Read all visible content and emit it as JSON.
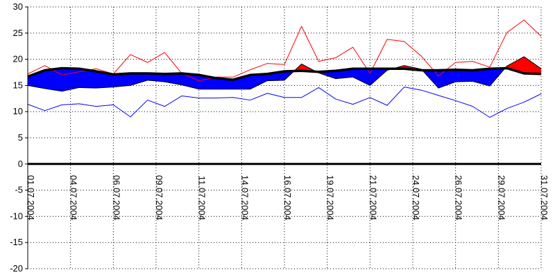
{
  "chart_data": {
    "type": "area",
    "title": "",
    "xlabel": "",
    "ylabel": "",
    "ylim": [
      -20,
      30
    ],
    "y_ticks": [
      30,
      25,
      20,
      15,
      10,
      5,
      0,
      -5,
      -10,
      -15,
      -20
    ],
    "x_tick_labels": [
      "01.07.2004",
      "04.07.2004",
      "06.07.2004",
      "09.07.2004",
      "11.07.2004",
      "14.07.2004",
      "16.07.2004",
      "19.07.2004",
      "21.07.2004",
      "24.07.2004",
      "26.07.2004",
      "29.07.2004",
      "31.07.2004"
    ],
    "x_tick_days": [
      1,
      3.5,
      6,
      8.5,
      11,
      13.5,
      16,
      18.5,
      21,
      23.5,
      26,
      28.5,
      31
    ],
    "grid": true,
    "zero_line": true,
    "days": [
      1,
      2,
      3,
      4,
      5,
      6,
      7,
      8,
      9,
      10,
      11,
      12,
      13,
      14,
      15,
      16,
      17,
      18,
      19,
      20,
      21,
      22,
      23,
      24,
      25,
      26,
      27,
      28,
      29,
      30,
      31
    ],
    "series": [
      {
        "color": "#ff0000",
        "style": "thin-line",
        "values": [
          17.2,
          18.8,
          17.0,
          17.6,
          18.2,
          17.2,
          20.9,
          19.4,
          21.3,
          17.3,
          15.9,
          16.6,
          16.6,
          18.0,
          19.2,
          19.0,
          26.3,
          19.6,
          20.3,
          22.3,
          17.3,
          23.8,
          23.4,
          20.6,
          16.8,
          19.4,
          19.6,
          18.5,
          25.1,
          27.5,
          24.4
        ]
      },
      {
        "color": "#000000",
        "style": "thick-line",
        "values": [
          16.7,
          17.9,
          18.3,
          18.2,
          17.7,
          17.1,
          17.3,
          17.3,
          17.2,
          17.3,
          17.0,
          16.4,
          16.1,
          17.0,
          17.2,
          17.7,
          17.8,
          17.6,
          17.8,
          18.2,
          18.2,
          18.2,
          18.2,
          17.9,
          17.9,
          18.0,
          17.9,
          18.2,
          18.3,
          17.3,
          17.2
        ]
      },
      {
        "color": "#0000ff",
        "style": "filled-band-edge",
        "values": [
          15.0,
          14.4,
          13.9,
          14.6,
          14.5,
          14.7,
          15.0,
          16.0,
          15.7,
          15.1,
          14.3,
          14.3,
          14.3,
          14.3,
          15.9,
          16.0,
          19.1,
          17.4,
          16.3,
          16.6,
          15.0,
          17.9,
          18.8,
          18.1,
          14.5,
          15.7,
          15.8,
          14.9,
          18.7,
          20.5,
          18.2
        ]
      },
      {
        "color": "#0000ff",
        "style": "thin-line",
        "values": [
          11.4,
          10.2,
          11.3,
          11.5,
          11.0,
          11.3,
          9.0,
          12.2,
          11.0,
          13.0,
          12.6,
          12.6,
          12.7,
          12.2,
          13.5,
          12.7,
          12.7,
          14.6,
          12.4,
          11.4,
          12.7,
          11.2,
          14.7,
          14.1,
          13.1,
          12.1,
          11.0,
          8.9,
          10.6,
          11.8,
          13.4
        ]
      }
    ],
    "colors": {
      "above": "#ff0000",
      "below": "#0000ff",
      "reference": "#000000",
      "grid": "#000000",
      "background": "#ffffff"
    }
  }
}
